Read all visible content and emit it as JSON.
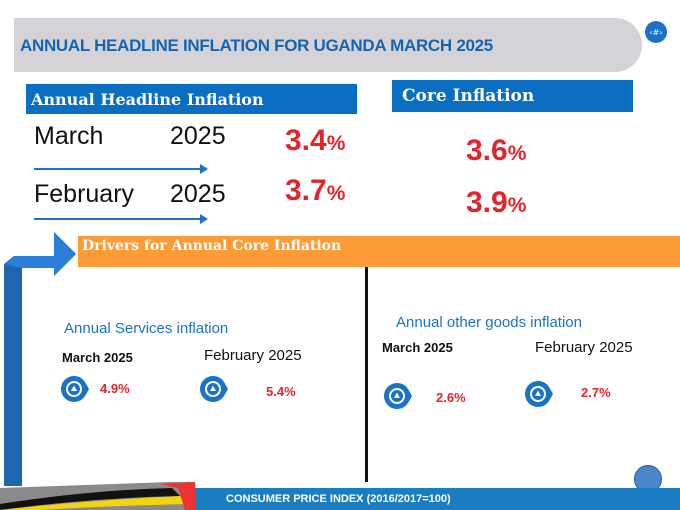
{
  "title": "ANNUAL HEADLINE INFLATION FOR UGANDA MARCH 2025",
  "page_number": "‹#›",
  "headline": {
    "label": "Annual Headline Inflation",
    "rows": [
      {
        "month": "March",
        "year": "2025",
        "value": "3.4",
        "unit": "%"
      },
      {
        "month": "February",
        "year": "2025",
        "value": "3.7",
        "unit": "%"
      }
    ]
  },
  "core": {
    "label": "Core Inflation",
    "rows": [
      {
        "value": "3.6",
        "unit": "%"
      },
      {
        "value": "3.9",
        "unit": "%"
      }
    ]
  },
  "drivers": {
    "label": "Drivers for Annual Core Inflation"
  },
  "services": {
    "label": "Annual Services inflation",
    "march": "March  2025",
    "march_value": "4.9%",
    "feb": "February  2025",
    "feb_value": "5.4%"
  },
  "other_goods": {
    "label": "Annual other goods inflation",
    "march": "March  2025",
    "march_value": "2.6%",
    "feb": "February  2025",
    "feb_value": "2.7%"
  },
  "footer": "CONSUMER PRICE INDEX (2016/2017=100)",
  "colors": {
    "accent": "#1a72c9",
    "value": "#e4242c",
    "orange": "#fd9b37"
  }
}
